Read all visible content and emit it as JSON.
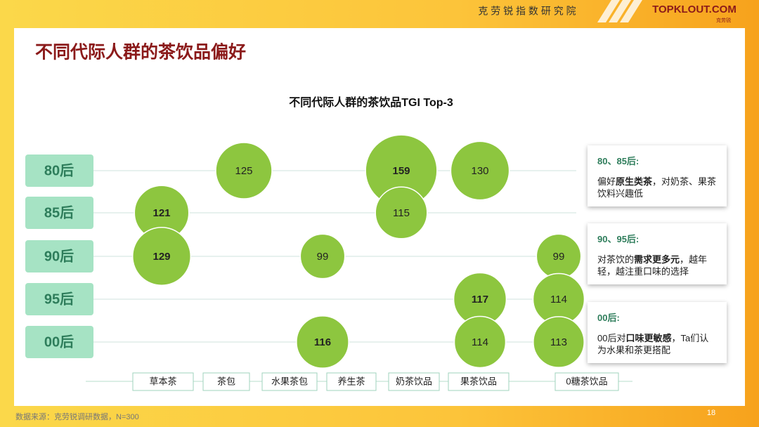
{
  "header": {
    "institute": "克 劳 锐 指 数 研 究 院",
    "brand": "TOPKLOUT.COM",
    "brand_sub": "克劳锐"
  },
  "title": "不同代际人群的茶饮品偏好",
  "chart_data": {
    "type": "bubble",
    "title": "不同代际人群的茶饮品TGI Top-3",
    "categories": [
      "草本茶",
      "茶包",
      "水果茶包",
      "养生茶",
      "奶茶饮品",
      "果茶饮品",
      "0糖茶饮品"
    ],
    "series": [
      {
        "name": "80后",
        "color": "#8dc63f",
        "values": [
          null,
          125,
          null,
          null,
          159,
          130,
          null
        ]
      },
      {
        "name": "85后",
        "color": "#8dc63f",
        "values": [
          121,
          null,
          null,
          null,
          115,
          null,
          null
        ]
      },
      {
        "name": "90后",
        "color": "#8dc63f",
        "values": [
          129,
          null,
          99,
          null,
          null,
          null,
          99
        ]
      },
      {
        "name": "95后",
        "color": "#8dc63f",
        "values": [
          null,
          null,
          null,
          null,
          null,
          117,
          114
        ]
      },
      {
        "name": "00后",
        "color": "#8dc63f",
        "values": [
          null,
          null,
          116,
          null,
          null,
          114,
          113
        ]
      }
    ]
  },
  "notes": [
    {
      "title": "80、85后:",
      "body": [
        {
          "text": "偏好"
        },
        {
          "text": "原生类茶",
          "bold": true
        },
        {
          "text": "，对奶茶、果茶饮料兴趣低"
        }
      ]
    },
    {
      "title": "90、95后:",
      "body": [
        {
          "text": "对茶饮的"
        },
        {
          "text": "需求更多元",
          "bold": true
        },
        {
          "text": "，越年轻，越注重口味的选择"
        }
      ]
    },
    {
      "title": "00后:",
      "body": [
        {
          "text": "00后对"
        },
        {
          "text": "口味更敏感",
          "bold": true
        },
        {
          "text": "，Ta们认为水果和茶更搭配"
        }
      ]
    }
  ],
  "footer": {
    "source": "数据来源：克劳锐调研数据，N=300",
    "page": "18"
  }
}
